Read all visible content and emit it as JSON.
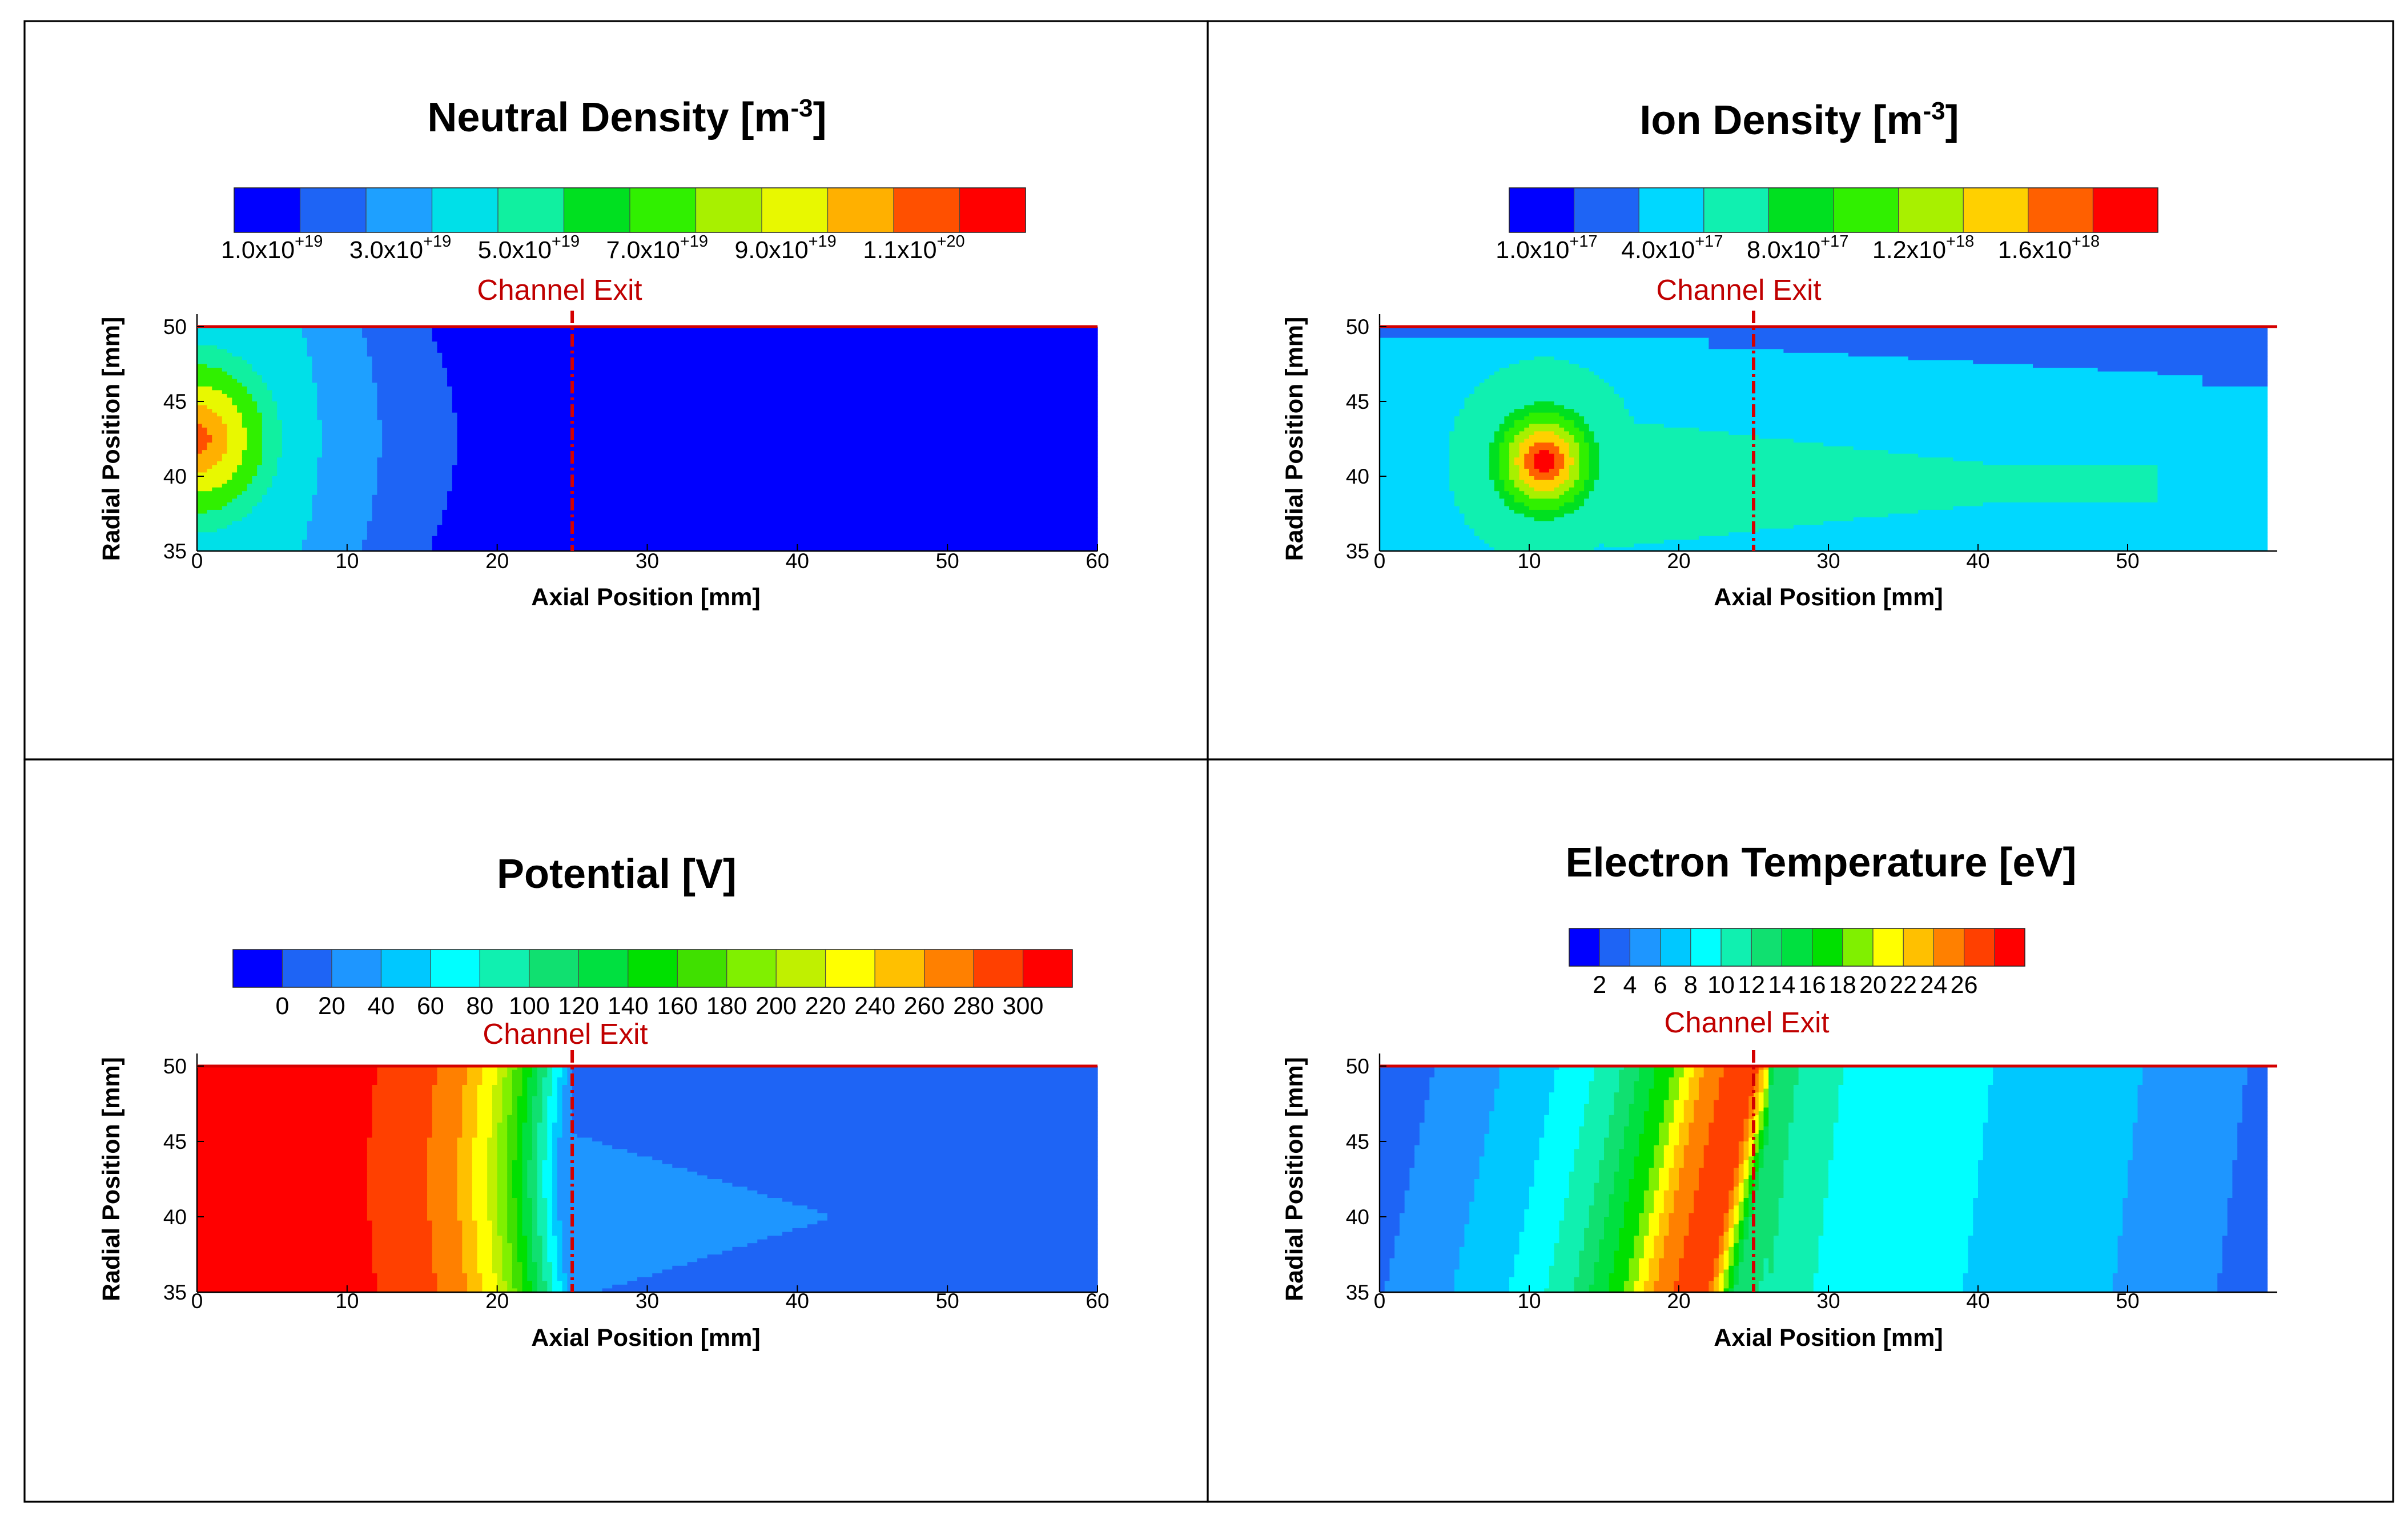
{
  "chart_data": [
    {
      "type": "heatmap",
      "title": "Neutral Density [m",
      "title_sup": "-3",
      "title_suffix": "]",
      "colormap": [
        "#0000ff",
        "#1e64f5",
        "#1ea0ff",
        "#00e0e8",
        "#10f0a0",
        "#00e020",
        "#30f000",
        "#a8f000",
        "#e8f800",
        "#ffb000",
        "#ff5000",
        "#ff0000"
      ],
      "colorbar_labels": [
        {
          "base": "1.0x10",
          "exp": "+19"
        },
        {
          "base": "3.0x10",
          "exp": "+19"
        },
        {
          "base": "5.0x10",
          "exp": "+19"
        },
        {
          "base": "7.0x10",
          "exp": "+19"
        },
        {
          "base": "9.0x10",
          "exp": "+19"
        },
        {
          "base": "1.1x10",
          "exp": "+20"
        }
      ],
      "xlabel": "Axial Position [mm]",
      "ylabel": "Radial Position [mm]",
      "xlim": [
        0,
        60
      ],
      "ylim": [
        35,
        50
      ],
      "xticks": [
        "0",
        "10",
        "20",
        "30",
        "40",
        "50",
        "60"
      ],
      "yticks": [
        "35",
        "40",
        "45",
        "50"
      ],
      "annotation": {
        "text": "Channel Exit",
        "x": 25
      },
      "field": {
        "background_level": 0,
        "blobs": [
          {
            "x": 0,
            "y": 42.5,
            "levels": [
              10,
              9,
              8,
              6,
              4
            ]
          }
        ],
        "bands": [
          {
            "x1": 6,
            "x2": 11,
            "level": 2
          },
          {
            "x1": 12,
            "x2": 16,
            "level": 1
          }
        ]
      }
    },
    {
      "type": "heatmap",
      "title": "Ion Density [m",
      "title_sup": "-3",
      "title_suffix": "]",
      "colormap": [
        "#0000ff",
        "#1e64f5",
        "#00d8ff",
        "#10f0b0",
        "#00e020",
        "#30f000",
        "#a8f000",
        "#ffd000",
        "#ff6000",
        "#ff0000"
      ],
      "colorbar_labels": [
        {
          "base": "1.0x10",
          "exp": "+17"
        },
        {
          "base": "4.0x10",
          "exp": "+17"
        },
        {
          "base": "8.0x10",
          "exp": "+17"
        },
        {
          "base": "1.2x10",
          "exp": "+18"
        },
        {
          "base": "1.6x10",
          "exp": "+18"
        }
      ],
      "xlabel": "Axial Position [mm]",
      "ylabel": "Radial Position [mm]",
      "xlim": [
        0,
        60
      ],
      "ylim": [
        35,
        50
      ],
      "xticks": [
        "0",
        "10",
        "20",
        "30",
        "40",
        "50"
      ],
      "yticks": [
        "35",
        "40",
        "45",
        "50"
      ],
      "annotation": {
        "text": "Channel Exit",
        "x": 25
      },
      "field": {
        "background_level": 2,
        "peak": {
          "x": 11,
          "y": 41,
          "level": 9
        },
        "plume": {
          "x_end": 52,
          "y": 39.5,
          "level": 3
        }
      }
    },
    {
      "type": "heatmap",
      "title": "Potential [V]",
      "colormap": [
        "#0000ff",
        "#1e64f5",
        "#1e96ff",
        "#00c8ff",
        "#00ffff",
        "#10f0b0",
        "#10e070",
        "#00e040",
        "#00e000",
        "#40e000",
        "#80f000",
        "#c0f000",
        "#ffff00",
        "#ffc000",
        "#ff8000",
        "#ff4000",
        "#ff0000"
      ],
      "colorbar_labels": [
        "0",
        "20",
        "40",
        "60",
        "80",
        "100",
        "120",
        "140",
        "160",
        "180",
        "200",
        "220",
        "240",
        "260",
        "280",
        "300"
      ],
      "xlabel": "Axial Position [mm]",
      "ylabel": "Radial Position [mm]",
      "xlim": [
        0,
        60
      ],
      "ylim": [
        35,
        50
      ],
      "xticks": [
        "0",
        "10",
        "20",
        "30",
        "40",
        "50",
        "60"
      ],
      "yticks": [
        "35",
        "40",
        "45",
        "50"
      ],
      "annotation": {
        "text": "Channel Exit",
        "x": 25
      },
      "field": {
        "profile": [
          [
            0,
            300
          ],
          [
            12,
            300
          ],
          [
            15.5,
            285
          ],
          [
            18,
            260
          ],
          [
            20,
            220
          ],
          [
            21.5,
            170
          ],
          [
            23,
            110
          ],
          [
            24.5,
            50
          ],
          [
            25,
            20
          ],
          [
            60,
            20
          ]
        ]
      }
    },
    {
      "type": "heatmap",
      "title": "Electron Temperature [eV]",
      "colormap": [
        "#0000ff",
        "#1e64f5",
        "#1e96ff",
        "#00c8ff",
        "#00ffff",
        "#10f0b0",
        "#10e070",
        "#00e040",
        "#00e000",
        "#80f000",
        "#ffff00",
        "#ffc000",
        "#ff8000",
        "#ff4000",
        "#ff0000"
      ],
      "colorbar_labels": [
        "2",
        "4",
        "6",
        "8",
        "10",
        "12",
        "14",
        "16",
        "18",
        "20",
        "22",
        "24",
        "26"
      ],
      "xlabel": "Axial Position [mm]",
      "ylabel": "Radial Position [mm]",
      "xlim": [
        0,
        60
      ],
      "ylim": [
        35,
        50
      ],
      "xticks": [
        "0",
        "10",
        "20",
        "30",
        "40",
        "50"
      ],
      "yticks": [
        "35",
        "40",
        "45",
        "50"
      ],
      "annotation": {
        "text": "Channel Exit",
        "x": 25
      },
      "field": {
        "profile": [
          [
            0,
            3
          ],
          [
            4,
            5
          ],
          [
            9,
            7
          ],
          [
            14,
            11
          ],
          [
            18,
            18
          ],
          [
            20,
            24
          ],
          [
            22,
            27
          ],
          [
            23.5,
            27
          ],
          [
            24.5,
            20
          ],
          [
            25.5,
            13
          ],
          [
            30,
            10
          ],
          [
            40,
            8
          ],
          [
            50,
            6
          ],
          [
            57,
            4
          ],
          [
            59,
            2
          ]
        ]
      }
    }
  ]
}
